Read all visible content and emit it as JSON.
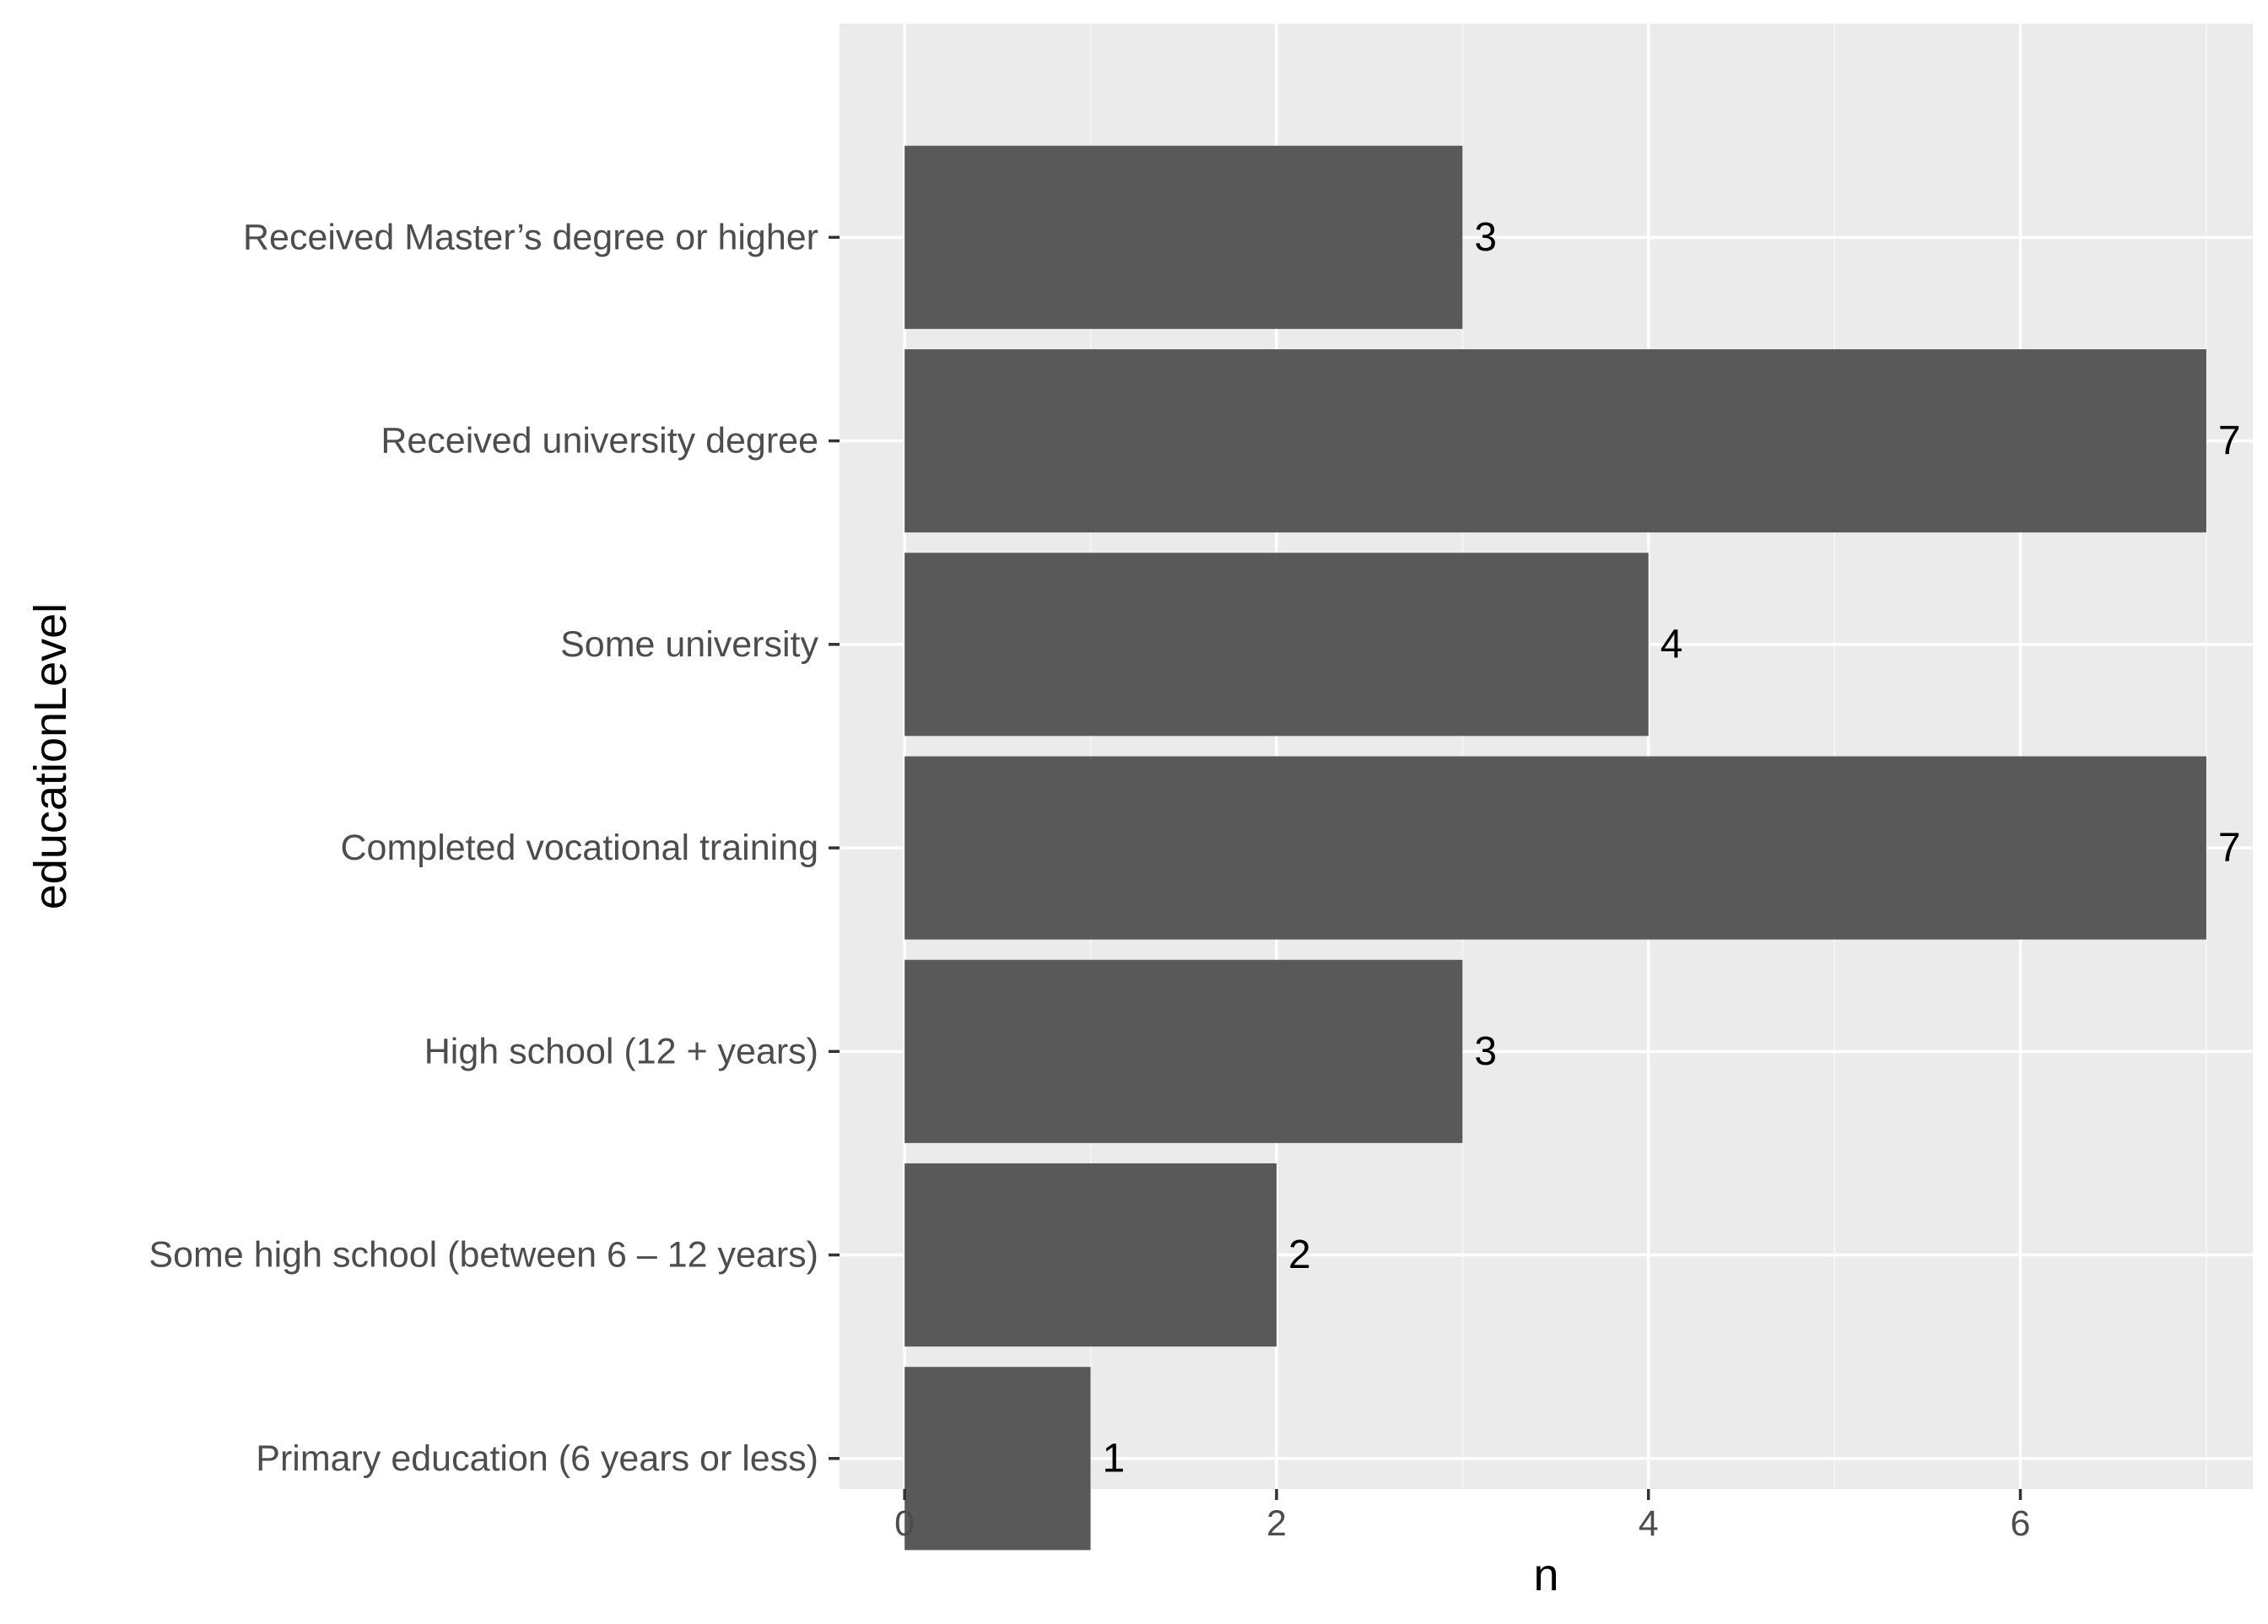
{
  "chart_data": {
    "type": "bar",
    "orientation": "horizontal",
    "categories": [
      "Received Master’s degree or higher",
      "Received university degree",
      "Some university",
      "Completed vocational training",
      "High school (12 + years)",
      "Some high school (between 6 – 12 years)",
      "Primary education (6 years or less)"
    ],
    "values": [
      3,
      7,
      4,
      7,
      3,
      2,
      1
    ],
    "data_labels": [
      "3",
      "7",
      "4",
      "7",
      "3",
      "2",
      "1"
    ],
    "xlabel": "n",
    "ylabel": "educationLevel",
    "xlim": [
      -0.35,
      7.25
    ],
    "x_ticks": [
      0,
      2,
      4,
      6
    ],
    "x_tick_labels": [
      "0",
      "2",
      "4",
      "6"
    ],
    "grid": true,
    "colors": {
      "panel_background": "#EBEBEB",
      "grid_major": "#FFFFFF",
      "grid_minor": "#F5F5F5",
      "bar_fill": "#595959",
      "axis_text": "#4D4D4D",
      "title_text": "#000000",
      "tick_mark": "#333333"
    }
  }
}
